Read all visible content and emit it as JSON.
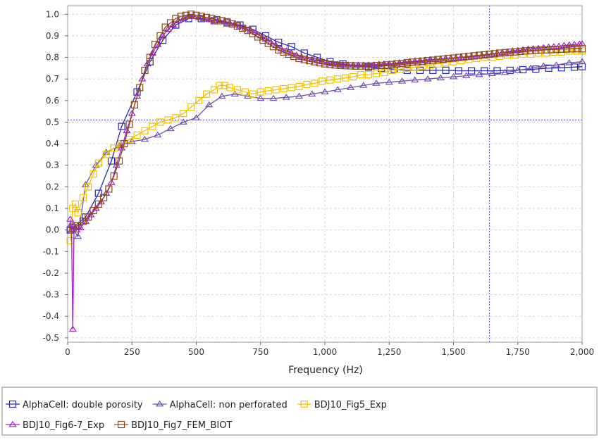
{
  "chart_data": {
    "type": "line",
    "xlabel": "Frequency (Hz)",
    "ylabel": "",
    "xlim": [
      0,
      2000
    ],
    "ylim": [
      -0.52,
      1.04
    ],
    "x_ticks": [
      0,
      250,
      500,
      750,
      1000,
      1250,
      1500,
      1750,
      2000
    ],
    "x_tick_labels": [
      "0",
      "250",
      "500",
      "750",
      "1,000",
      "1,250",
      "1,500",
      "1,750",
      "2,000"
    ],
    "y_ticks": [
      -0.5,
      -0.4,
      -0.3,
      -0.2,
      -0.1,
      0.0,
      0.1,
      0.2,
      0.3,
      0.4,
      0.5,
      0.6,
      0.7,
      0.8,
      0.9,
      1.0
    ],
    "y_tick_labels": [
      "-0.5",
      "-0.4",
      "-0.3",
      "-0.2",
      "-0.1",
      "0.0",
      "0.1",
      "0.2",
      "0.3",
      "0.4",
      "0.5",
      "0.6",
      "0.7",
      "0.8",
      "0.9",
      "1.0"
    ],
    "grid": true,
    "crosshair": {
      "x": 1640,
      "y": 0.51
    },
    "legend_position": "bottom",
    "legend_rows": [
      [
        0,
        1,
        2
      ],
      [
        3,
        4
      ]
    ],
    "series": [
      {
        "name": "AlphaCell: double porosity",
        "color": "#2a2ab4",
        "marker": "square",
        "x": [
          10,
          30,
          70,
          120,
          170,
          210,
          270,
          320,
          370,
          420,
          470,
          520,
          570,
          620,
          670,
          720,
          770,
          820,
          870,
          920,
          970,
          1020,
          1070,
          1120,
          1170,
          1220,
          1270,
          1320,
          1370,
          1420,
          1470,
          1520,
          1570,
          1620,
          1670,
          1720,
          1770,
          1820,
          1870,
          1920,
          1970,
          2000
        ],
        "y": [
          0.0,
          0.02,
          0.06,
          0.17,
          0.32,
          0.48,
          0.64,
          0.78,
          0.88,
          0.95,
          0.98,
          0.98,
          0.97,
          0.96,
          0.95,
          0.93,
          0.9,
          0.87,
          0.85,
          0.82,
          0.8,
          0.78,
          0.77,
          0.76,
          0.755,
          0.75,
          0.745,
          0.74,
          0.74,
          0.74,
          0.74,
          0.738,
          0.738,
          0.738,
          0.738,
          0.74,
          0.743,
          0.746,
          0.75,
          0.752,
          0.755,
          0.757
        ]
      },
      {
        "name": "AlphaCell: non perforated",
        "color": "#7050a8",
        "marker": "triangle",
        "x": [
          10,
          40,
          70,
          110,
          150,
          200,
          250,
          300,
          350,
          400,
          450,
          500,
          550,
          600,
          650,
          700,
          750,
          800,
          850,
          900,
          950,
          1000,
          1050,
          1100,
          1150,
          1200,
          1250,
          1300,
          1350,
          1400,
          1450,
          1500,
          1550,
          1600,
          1650,
          1700,
          1750,
          1800,
          1850,
          1900,
          1950,
          2000
        ],
        "y": [
          0.02,
          -0.03,
          0.21,
          0.3,
          0.36,
          0.39,
          0.41,
          0.42,
          0.44,
          0.47,
          0.5,
          0.52,
          0.58,
          0.62,
          0.63,
          0.62,
          0.61,
          0.61,
          0.615,
          0.62,
          0.63,
          0.64,
          0.65,
          0.66,
          0.67,
          0.68,
          0.685,
          0.69,
          0.695,
          0.7,
          0.705,
          0.71,
          0.715,
          0.72,
          0.725,
          0.73,
          0.74,
          0.75,
          0.76,
          0.765,
          0.775,
          0.78
        ]
      },
      {
        "name": "BDJ10_Fig5_Exp",
        "color": "#f2c200",
        "marker": "square",
        "x": [
          10,
          20,
          30,
          40,
          60,
          80,
          100,
          120,
          150,
          180,
          210,
          240,
          270,
          300,
          330,
          360,
          390,
          420,
          450,
          480,
          510,
          540,
          570,
          590,
          610,
          630,
          660,
          690,
          720,
          750,
          780,
          810,
          840,
          870,
          900,
          930,
          960,
          990,
          1020,
          1050,
          1080,
          1110,
          1140,
          1170,
          1200,
          1230,
          1260,
          1290,
          1320,
          1350,
          1380,
          1410,
          1440,
          1470,
          1500,
          1530,
          1560,
          1590,
          1620,
          1650,
          1680,
          1710,
          1740,
          1770,
          1800,
          1830,
          1860,
          1890,
          1920,
          1950,
          1980,
          2000
        ],
        "y": [
          -0.05,
          0.1,
          0.12,
          0.08,
          0.15,
          0.2,
          0.26,
          0.31,
          0.35,
          0.38,
          0.4,
          0.42,
          0.44,
          0.46,
          0.48,
          0.5,
          0.51,
          0.52,
          0.54,
          0.57,
          0.6,
          0.63,
          0.65,
          0.67,
          0.67,
          0.66,
          0.65,
          0.64,
          0.63,
          0.64,
          0.645,
          0.65,
          0.655,
          0.66,
          0.665,
          0.675,
          0.68,
          0.69,
          0.695,
          0.7,
          0.705,
          0.71,
          0.72,
          0.72,
          0.725,
          0.73,
          0.74,
          0.745,
          0.75,
          0.755,
          0.76,
          0.765,
          0.77,
          0.775,
          0.78,
          0.785,
          0.79,
          0.795,
          0.8,
          0.8,
          0.805,
          0.81,
          0.81,
          0.815,
          0.815,
          0.82,
          0.82,
          0.825,
          0.825,
          0.83,
          0.83,
          0.83
        ]
      },
      {
        "name": "BDJ10_Fig6-7_Exp",
        "color": "#a020c8",
        "marker": "triangle",
        "x": [
          10,
          15,
          20,
          25,
          35,
          50,
          70,
          90,
          110,
          130,
          150,
          170,
          190,
          210,
          230,
          250,
          270,
          290,
          310,
          330,
          350,
          370,
          390,
          410,
          430,
          450,
          470,
          490,
          510,
          530,
          550,
          570,
          590,
          610,
          630,
          650,
          670,
          690,
          710,
          730,
          750,
          770,
          790,
          810,
          830,
          850,
          870,
          890,
          910,
          930,
          950,
          970,
          990,
          1010,
          1030,
          1050,
          1070,
          1090,
          1110,
          1130,
          1150,
          1170,
          1190,
          1210,
          1230,
          1250,
          1270,
          1290,
          1310,
          1330,
          1350,
          1370,
          1390,
          1410,
          1430,
          1450,
          1470,
          1490,
          1510,
          1530,
          1550,
          1570,
          1590,
          1610,
          1630,
          1650,
          1670,
          1690,
          1710,
          1730,
          1750,
          1770,
          1790,
          1810,
          1830,
          1850,
          1870,
          1890,
          1910,
          1930,
          1950,
          1970,
          1990,
          2000
        ],
        "y": [
          0.05,
          0.0,
          -0.46,
          0.02,
          0.0,
          0.01,
          0.04,
          0.07,
          0.1,
          0.13,
          0.17,
          0.22,
          0.3,
          0.38,
          0.46,
          0.54,
          0.62,
          0.7,
          0.77,
          0.82,
          0.86,
          0.9,
          0.93,
          0.95,
          0.97,
          0.98,
          0.99,
          0.99,
          0.985,
          0.98,
          0.975,
          0.97,
          0.97,
          0.965,
          0.96,
          0.955,
          0.945,
          0.935,
          0.925,
          0.915,
          0.9,
          0.885,
          0.87,
          0.855,
          0.84,
          0.83,
          0.82,
          0.81,
          0.8,
          0.795,
          0.79,
          0.785,
          0.78,
          0.775,
          0.77,
          0.768,
          0.766,
          0.765,
          0.765,
          0.765,
          0.765,
          0.765,
          0.765,
          0.768,
          0.77,
          0.77,
          0.772,
          0.775,
          0.778,
          0.78,
          0.782,
          0.785,
          0.787,
          0.79,
          0.79,
          0.792,
          0.795,
          0.795,
          0.797,
          0.8,
          0.8,
          0.802,
          0.805,
          0.807,
          0.81,
          0.815,
          0.82,
          0.822,
          0.825,
          0.83,
          0.832,
          0.835,
          0.838,
          0.84,
          0.842,
          0.845,
          0.848,
          0.85,
          0.852,
          0.855,
          0.858,
          0.86,
          0.862,
          0.863
        ]
      },
      {
        "name": "BDJ10_Fig7_FEM_BIOT",
        "color": "#8a4a1a",
        "marker": "square",
        "x": [
          20,
          40,
          60,
          80,
          100,
          120,
          140,
          160,
          180,
          200,
          220,
          240,
          260,
          280,
          300,
          320,
          340,
          360,
          380,
          400,
          420,
          440,
          460,
          480,
          500,
          520,
          540,
          560,
          580,
          600,
          620,
          640,
          660,
          680,
          700,
          720,
          740,
          760,
          780,
          800,
          820,
          840,
          860,
          880,
          900,
          920,
          940,
          960,
          980,
          1000,
          1020,
          1040,
          1060,
          1080,
          1100,
          1120,
          1140,
          1160,
          1180,
          1200,
          1220,
          1240,
          1260,
          1280,
          1300,
          1320,
          1340,
          1360,
          1380,
          1400,
          1420,
          1440,
          1460,
          1480,
          1500,
          1520,
          1540,
          1560,
          1580,
          1600,
          1620,
          1640,
          1660,
          1680,
          1700,
          1720,
          1740,
          1760,
          1780,
          1800,
          1820,
          1840,
          1860,
          1880,
          1900,
          1920,
          1940,
          1960,
          1980,
          2000
        ],
        "y": [
          0.01,
          0.02,
          0.04,
          0.06,
          0.09,
          0.12,
          0.15,
          0.19,
          0.25,
          0.32,
          0.4,
          0.49,
          0.58,
          0.66,
          0.74,
          0.8,
          0.86,
          0.9,
          0.94,
          0.96,
          0.98,
          0.99,
          0.995,
          1.0,
          0.995,
          0.99,
          0.985,
          0.98,
          0.975,
          0.97,
          0.965,
          0.955,
          0.945,
          0.935,
          0.925,
          0.91,
          0.895,
          0.88,
          0.865,
          0.85,
          0.835,
          0.825,
          0.815,
          0.805,
          0.795,
          0.79,
          0.785,
          0.78,
          0.775,
          0.77,
          0.768,
          0.765,
          0.763,
          0.762,
          0.761,
          0.76,
          0.76,
          0.76,
          0.76,
          0.762,
          0.763,
          0.765,
          0.767,
          0.77,
          0.772,
          0.775,
          0.778,
          0.78,
          0.782,
          0.785,
          0.787,
          0.79,
          0.792,
          0.795,
          0.797,
          0.8,
          0.802,
          0.805,
          0.807,
          0.81,
          0.812,
          0.815,
          0.817,
          0.82,
          0.822,
          0.824,
          0.826,
          0.828,
          0.83,
          0.832,
          0.833,
          0.834,
          0.835,
          0.836,
          0.837,
          0.838,
          0.839,
          0.84,
          0.84,
          0.84
        ]
      }
    ]
  }
}
